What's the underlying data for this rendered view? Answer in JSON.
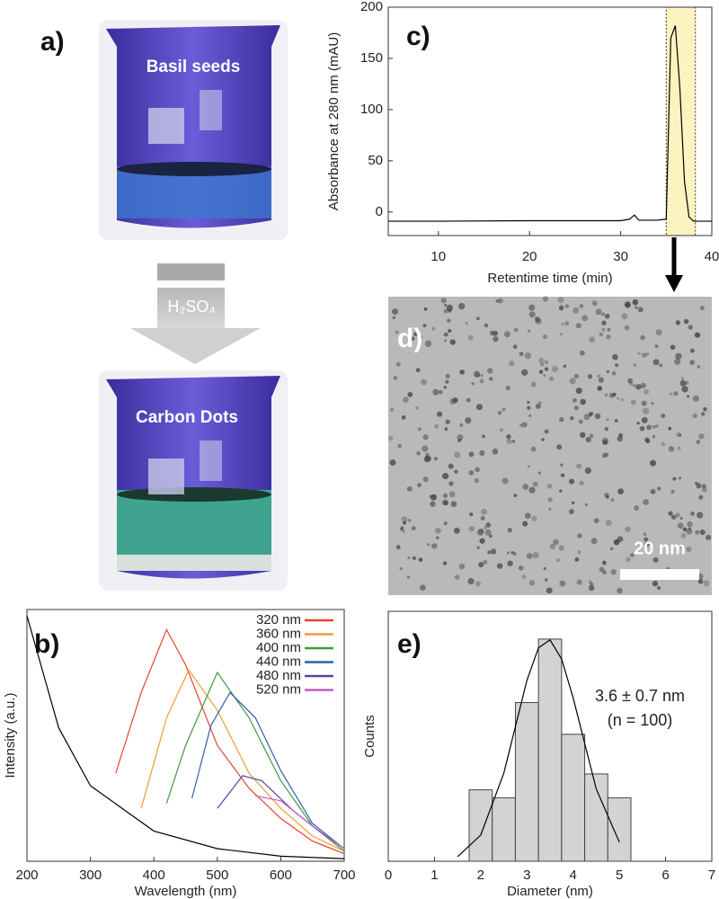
{
  "panel_labels": [
    "a)",
    "b)",
    "c)",
    "d)",
    "e)"
  ],
  "photo_a": {
    "top_label": "Basil seeds",
    "reagent": "H₂SO₄",
    "bottom_label": "Carbon Dots"
  },
  "tem_d": {
    "scale_bar": "20 nm"
  },
  "chart_data": [
    {
      "type": "line",
      "x_label": "Retentime time (min)",
      "y_label": "Absorbance at 280 nm (mAU)",
      "xlim": [
        4.5,
        40
      ],
      "xticks": [
        10,
        20,
        30,
        40
      ],
      "ylim": [
        -23,
        200
      ],
      "yticks": [
        0,
        50,
        100,
        150,
        200
      ],
      "highlight_xrange": [
        35,
        38.2
      ],
      "highlight_color": "#fdf3c0",
      "series": [
        {
          "color": "#000000",
          "x": [
            4.5,
            10,
            20,
            30,
            31,
            31.5,
            32,
            34,
            35,
            35.5,
            36,
            36.5,
            37,
            37.5,
            38,
            40
          ],
          "values": [
            -9,
            -9,
            -8.5,
            -8.5,
            -7,
            -3,
            -8,
            -8,
            -7,
            170,
            182,
            120,
            30,
            -5,
            -9,
            -9
          ]
        }
      ]
    },
    {
      "type": "line",
      "x_label": "Wavelength (nm)",
      "y_label": "Intensity (a.u.)",
      "xlim": [
        200,
        700
      ],
      "xticks": [
        200,
        300,
        400,
        500,
        600,
        700
      ],
      "ylim": [
        0,
        1
      ],
      "legend": "top-right",
      "series": [
        {
          "color": "#000000",
          "x": [
            200,
            250,
            300,
            400,
            500,
            600,
            700
          ],
          "values": [
            0.975,
            0.53,
            0.3,
            0.12,
            0.05,
            0.02,
            0.01
          ]
        },
        {
          "name": "320 nm",
          "color": "#e8412c",
          "x": [
            340,
            380,
            420,
            450,
            500,
            550,
            600,
            650,
            700
          ],
          "values": [
            0.35,
            0.67,
            0.92,
            0.78,
            0.46,
            0.29,
            0.17,
            0.08,
            0.03
          ]
        },
        {
          "name": "360 nm",
          "color": "#f39a3a",
          "x": [
            380,
            420,
            455,
            500,
            550,
            600,
            650,
            700
          ],
          "values": [
            0.21,
            0.57,
            0.76,
            0.6,
            0.35,
            0.21,
            0.1,
            0.04
          ]
        },
        {
          "name": "400 nm",
          "color": "#3f9a3c",
          "x": [
            420,
            450,
            500,
            550,
            600,
            650,
            700
          ],
          "values": [
            0.23,
            0.46,
            0.75,
            0.57,
            0.32,
            0.14,
            0.04
          ]
        },
        {
          "name": "440 nm",
          "color": "#2e5fb0",
          "x": [
            460,
            490,
            520,
            560,
            600,
            650,
            700
          ],
          "values": [
            0.25,
            0.54,
            0.67,
            0.57,
            0.36,
            0.15,
            0.05
          ]
        },
        {
          "name": "480 nm",
          "color": "#5a3fa8",
          "x": [
            500,
            540,
            570,
            620,
            660,
            700
          ],
          "values": [
            0.21,
            0.34,
            0.32,
            0.2,
            0.12,
            0.05
          ]
        },
        {
          "name": "520 nm",
          "color": "#c45ac4",
          "x": [
            560,
            600,
            650,
            700
          ],
          "values": [
            0.26,
            0.24,
            0.14,
            0.05
          ]
        }
      ]
    },
    {
      "type": "histogram",
      "x_label": "Diameter (nm)",
      "y_label": "Counts",
      "xlim": [
        0,
        7
      ],
      "xticks": [
        0,
        1,
        2,
        3,
        4,
        5,
        6,
        7
      ],
      "ylim": [
        0,
        31.5
      ],
      "bins": [
        1.75,
        2.25,
        2.75,
        3.25,
        3.75,
        4.25,
        4.75,
        5.25
      ],
      "counts": [
        9,
        8,
        20,
        28,
        16,
        11,
        8
      ],
      "color": "#d3d3d3",
      "fit": {
        "color": "#000000",
        "x": [
          1.5,
          2,
          2.5,
          3,
          3.25,
          3.5,
          3.75,
          4,
          4.5,
          5
        ],
        "values": [
          0.58,
          3.3,
          11.1,
          22.8,
          26.9,
          27.9,
          25.5,
          20.6,
          9.1,
          2.4
        ]
      },
      "annotations": [
        "3.6 ± 0.7 nm",
        "(n = 100)"
      ]
    }
  ]
}
